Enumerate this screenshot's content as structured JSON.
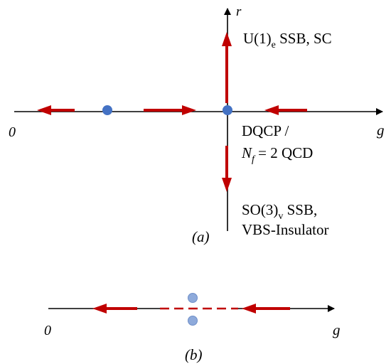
{
  "panel_a": {
    "axis_r_label": "r",
    "axis_g_label": "g",
    "origin_label": "0",
    "up_phase_main": "U(1)",
    "up_phase_sub": "e",
    "up_phase_rest": " SSB, SC",
    "critical_line1": "DQCP /",
    "critical_n": "N",
    "critical_n_sub": "f",
    "critical_rest": " = 2 QCD",
    "down_phase_main": "SO(3)",
    "down_phase_sub": "v",
    "down_phase_rest": " SSB,",
    "down_phase_line2": "VBS-Insulator",
    "caption": "(a)"
  },
  "panel_b": {
    "axis_g_label": "g",
    "origin_label": "0",
    "caption": "(b)"
  },
  "colors": {
    "axis": "#000000",
    "flow_arrow": "#c00000",
    "fixed_point": "#4472c4",
    "complex_point": "#8eaadb"
  }
}
